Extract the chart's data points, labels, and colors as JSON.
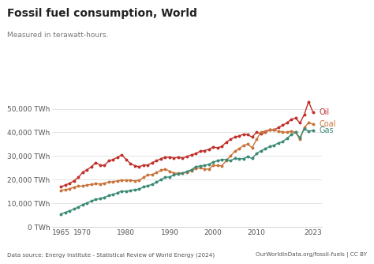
{
  "title": "Fossil fuel consumption, World",
  "subtitle": "Measured in terawatt-hours.",
  "footer_left": "Data source: Energy Institute - Statistical Review of World Energy (2024)",
  "footer_right": "OurWorldInData.org/fossil-fuels | CC BY",
  "logo_bg": "#c0392b",
  "oil_color": "#c0302b",
  "coal_color": "#c8733a",
  "gas_color": "#3a8a75",
  "background_color": "#ffffff",
  "years": [
    1965,
    1966,
    1967,
    1968,
    1969,
    1970,
    1971,
    1972,
    1973,
    1974,
    1975,
    1976,
    1977,
    1978,
    1979,
    1980,
    1981,
    1982,
    1983,
    1984,
    1985,
    1986,
    1987,
    1988,
    1989,
    1990,
    1991,
    1992,
    1993,
    1994,
    1995,
    1996,
    1997,
    1998,
    1999,
    2000,
    2001,
    2002,
    2003,
    2004,
    2005,
    2006,
    2007,
    2008,
    2009,
    2010,
    2011,
    2012,
    2013,
    2014,
    2015,
    2016,
    2017,
    2018,
    2019,
    2020,
    2021,
    2022,
    2023
  ],
  "oil": [
    17000,
    17800,
    18500,
    19600,
    21000,
    23200,
    24200,
    25500,
    27200,
    26200,
    26000,
    28000,
    28500,
    29500,
    30500,
    28500,
    26800,
    25900,
    25500,
    26200,
    26200,
    27200,
    28000,
    28900,
    29500,
    29500,
    29200,
    29500,
    29200,
    29800,
    30500,
    31000,
    32000,
    32300,
    32800,
    33800,
    33500,
    34000,
    35800,
    37000,
    38000,
    38500,
    39200,
    39000,
    38000,
    40000,
    39500,
    40000,
    41000,
    41000,
    42000,
    43000,
    44000,
    45500,
    46000,
    44000,
    47500,
    53000,
    48500
  ],
  "coal": [
    15500,
    15800,
    16200,
    16900,
    17300,
    17300,
    17800,
    18000,
    18300,
    18200,
    18500,
    19000,
    19200,
    19500,
    19800,
    19800,
    19800,
    19500,
    19800,
    21000,
    22000,
    22200,
    23000,
    24000,
    24500,
    23600,
    22800,
    22700,
    22800,
    23200,
    23800,
    24800,
    25000,
    24500,
    24500,
    26000,
    26000,
    25800,
    28000,
    30000,
    32000,
    33000,
    34500,
    35000,
    33500,
    37000,
    40000,
    40600,
    41000,
    41000,
    40500,
    40200,
    40000,
    40500,
    40000,
    37000,
    42000,
    44000,
    43500
  ],
  "gas": [
    5500,
    6200,
    6900,
    7600,
    8500,
    9500,
    10200,
    11000,
    11700,
    12000,
    12600,
    13300,
    13800,
    14500,
    15200,
    15000,
    15500,
    15800,
    16000,
    17000,
    17500,
    18000,
    19000,
    20000,
    21000,
    21200,
    22000,
    22500,
    22800,
    23500,
    24200,
    25500,
    25800,
    26000,
    26500,
    27400,
    28000,
    28500,
    28500,
    28000,
    29000,
    28800,
    28900,
    29700,
    29000,
    31000,
    32200,
    33000,
    34000,
    34500,
    35500,
    36000,
    37500,
    39000,
    40000,
    37800,
    41500,
    40500,
    40800
  ]
}
